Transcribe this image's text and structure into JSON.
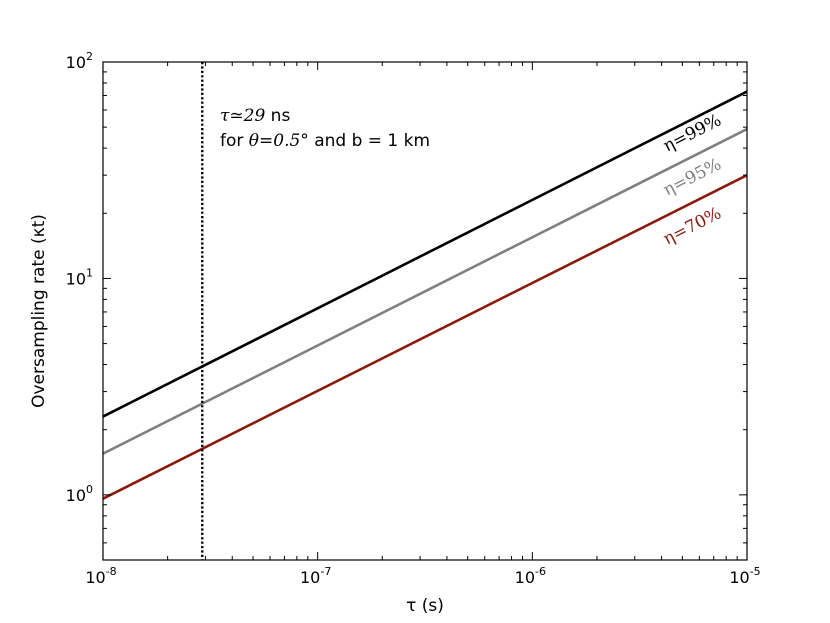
{
  "chart_data": {
    "type": "line",
    "x_scale": "log",
    "y_scale": "log",
    "xlim": [
      1e-08,
      1e-05
    ],
    "ylim": [
      0.5,
      100
    ],
    "xlabel": "τ (s)",
    "ylabel": "Oversampling rate (κt)",
    "x_ticks": [
      {
        "base": "10",
        "exp": "-8",
        "value": 1e-08
      },
      {
        "base": "10",
        "exp": "-7",
        "value": 1e-07
      },
      {
        "base": "10",
        "exp": "-6",
        "value": 1e-06
      },
      {
        "base": "10",
        "exp": "-5",
        "value": 1e-05
      }
    ],
    "y_ticks": [
      {
        "base": "10",
        "exp": "0",
        "value": 1
      },
      {
        "base": "10",
        "exp": "1",
        "value": 10
      },
      {
        "base": "10",
        "exp": "2",
        "value": 100
      }
    ],
    "series": [
      {
        "name": "η=99%",
        "color": "#000000",
        "x": [
          1e-08,
          1e-05
        ],
        "y": [
          2.3,
          73
        ]
      },
      {
        "name": "η=95%",
        "color": "#808080",
        "x": [
          1e-08,
          1e-05
        ],
        "y": [
          1.55,
          49
        ]
      },
      {
        "name": "η=70%",
        "color": "#8b1a0e",
        "x": [
          1e-08,
          1e-05
        ],
        "y": [
          0.96,
          30
        ]
      }
    ],
    "vline": {
      "x": 2.9e-08,
      "style": "dotted",
      "color": "#000000"
    },
    "annotation": {
      "line1": {
        "math": "τ≃29",
        "text": " ns"
      },
      "line2": {
        "pre": "for ",
        "math": "θ=0.5°",
        "post": "  and b = 1 km"
      }
    },
    "grid": false,
    "legend": "none"
  }
}
